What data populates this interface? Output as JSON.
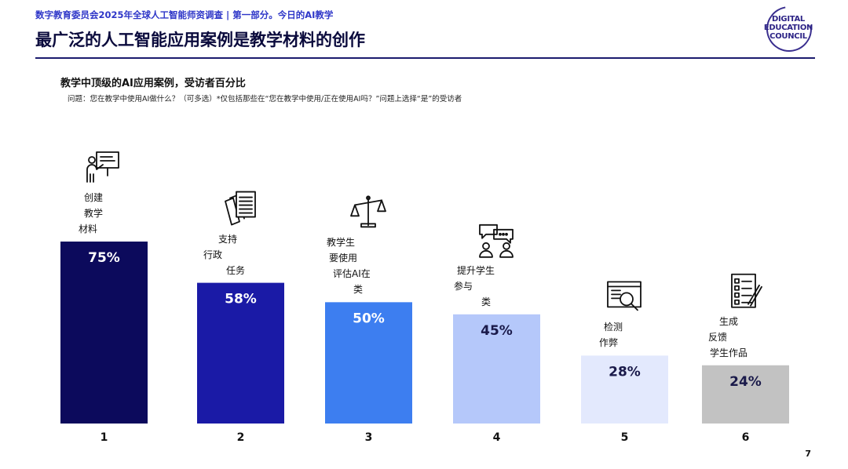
{
  "header": {
    "subtitle": "数字教育委员会2025年全球人工智能师资调查 | 第一部分。今日的AI教学",
    "title": "最广泛的人工智能应用案例是教学材料的创作",
    "logo_lines": [
      "DIGITAL",
      "EDUCATION",
      "COUNCIL"
    ]
  },
  "chart_data": {
    "type": "bar",
    "title": "教学中顶级的AI应用案例，受访者百分比",
    "subtitle": "问题：您在教学中使用AI做什么？（可多选）*仅包括那些在“您在教学中使用/正在使用AI吗？”问题上选择“是”的受访者",
    "categories": [
      "1",
      "2",
      "3",
      "4",
      "5",
      "6"
    ],
    "values": [
      75,
      58,
      50,
      45,
      28,
      24
    ],
    "value_labels": [
      "75%",
      "58%",
      "50%",
      "45%",
      "28%",
      "24%"
    ],
    "descriptions": [
      [
        "创建",
        "教学",
        "材料"
      ],
      [
        "支持",
        "行政",
        "任务"
      ],
      [
        "教学生",
        "要使用",
        "评估AI在",
        "类"
      ],
      [
        "提升学生",
        "参与",
        "类"
      ],
      [
        "检测",
        "作弊"
      ],
      [
        "生成",
        "反馈",
        "学生作品"
      ]
    ],
    "icons": [
      "presentation-icon",
      "documents-icon",
      "scales-icon",
      "discussion-icon",
      "inspection-icon",
      "checklist-icon"
    ],
    "bar_colors": [
      "#0c0a5c",
      "#1a1aa6",
      "#3d7ef0",
      "#b5c8fa",
      "#e3e9fd",
      "#c2c2c2"
    ],
    "label_colors": [
      "#ffffff",
      "#ffffff",
      "#ffffff",
      "#1a1a4a",
      "#1a1a4a",
      "#1a1a4a"
    ],
    "xlabel": "",
    "ylabel": "",
    "ylim": [
      0,
      100
    ],
    "grid": false,
    "legend": false
  },
  "page": {
    "number": "7"
  }
}
